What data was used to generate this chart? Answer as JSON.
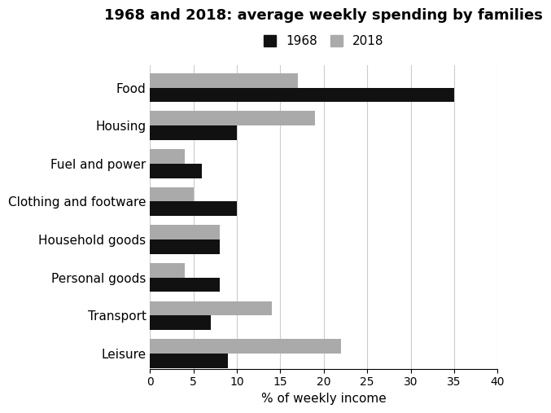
{
  "title": "1968 and 2018: average weekly spending by families",
  "categories": [
    "Food",
    "Housing",
    "Fuel and power",
    "Clothing and footware",
    "Household goods",
    "Personal goods",
    "Transport",
    "Leisure"
  ],
  "values_1968": [
    35,
    10,
    6,
    10,
    8,
    8,
    7,
    9
  ],
  "values_2018": [
    17,
    19,
    4,
    5,
    8,
    4,
    14,
    22
  ],
  "color_1968": "#111111",
  "color_2018": "#aaaaaa",
  "xlabel": "% of weekly income",
  "xlim": [
    0,
    40
  ],
  "xticks": [
    0,
    5,
    10,
    15,
    20,
    25,
    30,
    35,
    40
  ],
  "legend_labels": [
    "1968",
    "2018"
  ],
  "bar_height": 0.38,
  "background_color": "#ffffff",
  "title_fontsize": 13,
  "label_fontsize": 11,
  "tick_fontsize": 10,
  "grid_color": "#cccccc"
}
